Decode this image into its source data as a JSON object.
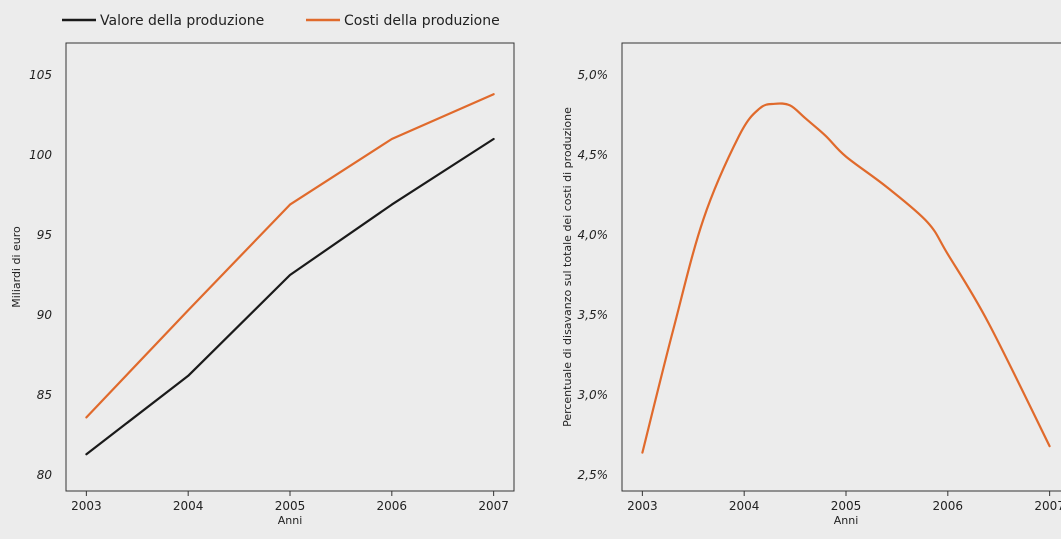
{
  "legend": {
    "items": [
      {
        "label": "Valore della produzione",
        "color": "#1a1a1a"
      },
      {
        "label": "Costi della produzione",
        "color": "#e06a2c"
      }
    ]
  },
  "chart_data": [
    {
      "type": "line",
      "title": "",
      "xlabel": "Anni",
      "ylabel": "Miliardi di euro",
      "x": [
        2003,
        2004,
        2005,
        2006,
        2007
      ],
      "x_tick_labels": [
        "2003",
        "2004",
        "2005",
        "2006",
        "2007"
      ],
      "y_tick_labels": [
        "80",
        "85",
        "90",
        "95",
        "100",
        "105"
      ],
      "y_ticks": [
        80,
        85,
        90,
        95,
        100,
        105
      ],
      "xlim": [
        2002.8,
        2007.2
      ],
      "ylim": [
        79,
        107
      ],
      "legend_position": "top-left",
      "grid": false,
      "series": [
        {
          "name": "Valore della produzione",
          "color": "#1a1a1a",
          "values": [
            81.3,
            86.2,
            92.5,
            96.9,
            101.0
          ]
        },
        {
          "name": "Costi della produzione",
          "color": "#e06a2c",
          "values": [
            83.6,
            90.3,
            96.9,
            101.0,
            103.8
          ]
        }
      ]
    },
    {
      "type": "line",
      "title": "",
      "xlabel": "Anni",
      "ylabel": "Percentuale di disavanzo sul totale dei costi di produzione",
      "x_tick_labels": [
        "2003",
        "2004",
        "2005",
        "2006",
        "2007"
      ],
      "x_ticks": [
        2003,
        2004,
        2005,
        2006,
        2007
      ],
      "y_tick_labels": [
        "2,5%",
        "3,0%",
        "3,5%",
        "4,0%",
        "4,5%",
        "5,0%"
      ],
      "y_ticks": [
        2.5,
        3.0,
        3.5,
        4.0,
        4.5,
        5.0
      ],
      "xlim": [
        2002.8,
        2007.2
      ],
      "ylim": [
        2.4,
        5.2
      ],
      "grid": false,
      "series": [
        {
          "name": "",
          "color": "#e06a2c",
          "x": [
            2003.0,
            2003.3,
            2003.6,
            2003.95,
            2004.15,
            2004.3,
            2004.45,
            2004.6,
            2004.8,
            2005.0,
            2005.4,
            2005.8,
            2006.0,
            2006.4,
            2007.0
          ],
          "values": [
            2.64,
            3.4,
            4.1,
            4.62,
            4.79,
            4.82,
            4.81,
            4.73,
            4.62,
            4.49,
            4.3,
            4.08,
            3.88,
            3.45,
            2.68
          ]
        }
      ]
    }
  ]
}
